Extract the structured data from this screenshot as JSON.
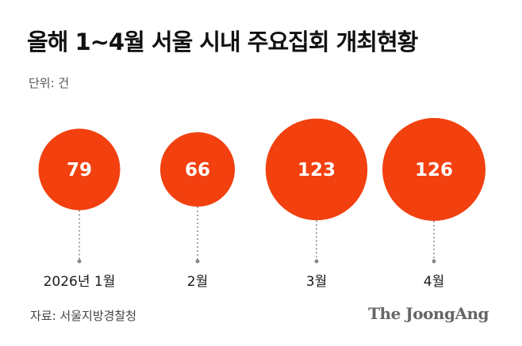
{
  "title": "올해 1~4월 서울 시내 주요집회 개최현황",
  "unit_label": "단위: 건",
  "source": "자료: 서울지방경찰청",
  "brand": "The JoongAng",
  "colors": {
    "bubble": "#f2400f",
    "value_text": "#ffffff",
    "connector": "#888888"
  },
  "chart_data": {
    "type": "bubble",
    "categories": [
      "2026년 1월",
      "2월",
      "3월",
      "4월"
    ],
    "values": [
      79,
      66,
      123,
      126
    ],
    "title": "올해 1~4월 서울 시내 주요집회 개최현황",
    "unit": "건",
    "xlabel": "",
    "ylabel": "",
    "grid": false,
    "legend": "none"
  }
}
